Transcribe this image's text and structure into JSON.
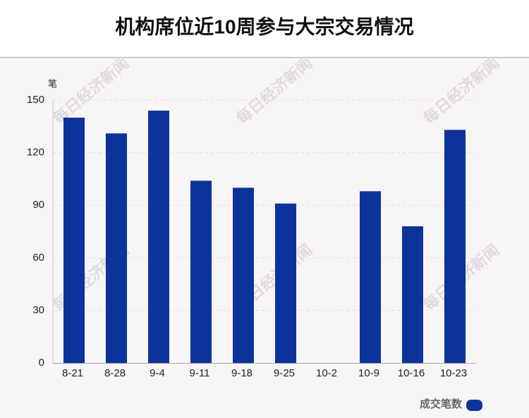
{
  "chart_data": {
    "type": "bar",
    "title": "机构席位近10周参与大宗交易情况",
    "y_unit": "笔",
    "watermark": "每日经济新闻",
    "categories": [
      "8-21",
      "8-28",
      "9-4",
      "9-11",
      "9-18",
      "9-25",
      "10-2",
      "10-9",
      "10-16",
      "10-23"
    ],
    "series": [
      {
        "name": "成交笔数",
        "color": "#0c3399",
        "values": [
          140,
          131,
          144,
          104,
          100,
          91,
          0,
          98,
          78,
          133
        ]
      }
    ],
    "ylim": [
      0,
      150
    ],
    "yticks": [
      0,
      30,
      60,
      90,
      120,
      150
    ],
    "grid": true,
    "legend": "bottom-right"
  }
}
